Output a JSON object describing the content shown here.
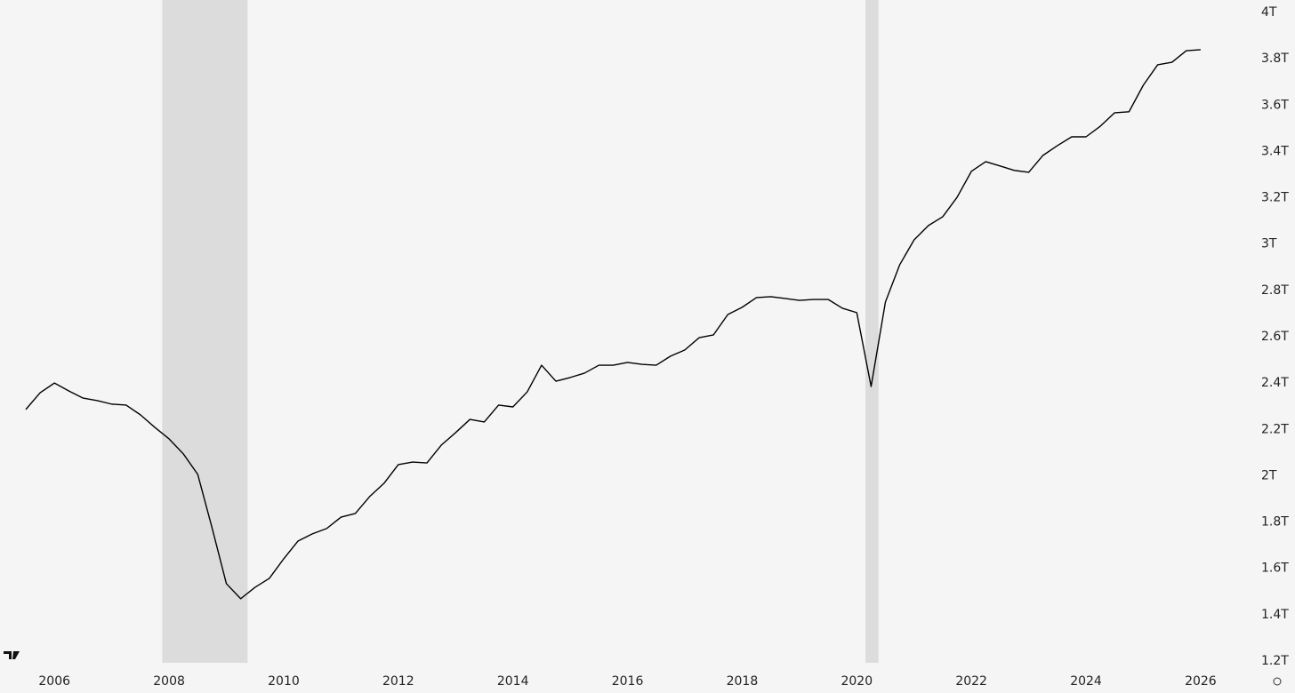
{
  "chart_data": {
    "type": "line",
    "color": "#000000",
    "x": [
      2005.5,
      2005.75,
      2006,
      2006.25,
      2006.5,
      2006.75,
      2007,
      2007.25,
      2007.5,
      2007.75,
      2008,
      2008.25,
      2008.5,
      2008.75,
      2009,
      2009.25,
      2009.5,
      2009.75,
      2010,
      2010.25,
      2010.5,
      2010.75,
      2011,
      2011.25,
      2011.5,
      2011.75,
      2012,
      2012.25,
      2012.5,
      2012.75,
      2013,
      2013.25,
      2013.5,
      2013.75,
      2014,
      2014.25,
      2014.5,
      2014.75,
      2015,
      2015.25,
      2015.5,
      2015.75,
      2016,
      2016.25,
      2016.5,
      2016.75,
      2017,
      2017.25,
      2017.5,
      2017.75,
      2018,
      2018.25,
      2018.5,
      2018.75,
      2019,
      2019.25,
      2019.5,
      2019.75,
      2020,
      2020.25,
      2020.5,
      2020.75,
      2021,
      2021.25,
      2021.5,
      2021.75,
      2022,
      2022.25,
      2022.5,
      2022.75,
      2023,
      2023.25,
      2023.5,
      2023.75,
      2024,
      2024.25,
      2024.5,
      2024.75,
      2025,
      2025.25,
      2025.5,
      2025.75,
      2026
    ],
    "values": [
      2.286,
      2.358,
      2.4,
      2.366,
      2.335,
      2.324,
      2.309,
      2.305,
      2.263,
      2.209,
      2.159,
      2.094,
      2.006,
      1.775,
      1.534,
      1.469,
      1.518,
      1.557,
      1.641,
      1.718,
      1.749,
      1.772,
      1.821,
      1.837,
      1.91,
      1.967,
      2.048,
      2.059,
      2.055,
      2.132,
      2.186,
      2.243,
      2.232,
      2.305,
      2.297,
      2.362,
      2.477,
      2.408,
      2.424,
      2.443,
      2.477,
      2.477,
      2.489,
      2.481,
      2.477,
      2.516,
      2.543,
      2.596,
      2.608,
      2.696,
      2.727,
      2.769,
      2.773,
      2.765,
      2.757,
      2.761,
      2.761,
      2.723,
      2.704,
      2.385,
      2.75,
      2.911,
      3.018,
      3.08,
      3.118,
      3.202,
      3.314,
      3.356,
      3.337,
      3.318,
      3.31,
      3.383,
      3.425,
      3.463,
      3.463,
      3.509,
      3.567,
      3.571,
      3.686,
      3.774,
      3.785,
      3.835,
      3.839
    ],
    "recessions": [
      [
        2007.88,
        2009.37
      ],
      [
        2020.15,
        2020.38
      ]
    ],
    "recession_color": "#dcdcdc",
    "xlim": [
      2005.05,
      2026.7
    ],
    "xticks": [
      2006,
      2008,
      2010,
      2012,
      2014,
      2016,
      2018,
      2020,
      2022,
      2024,
      2026
    ],
    "ylim": [
      1.2,
      4
    ],
    "yticks": [
      {
        "value": 1.2,
        "label": "1.2T"
      },
      {
        "value": 1.4,
        "label": "1.4T"
      },
      {
        "value": 1.6,
        "label": "1.6T"
      },
      {
        "value": 1.8,
        "label": "1.8T"
      },
      {
        "value": 2,
        "label": "2T"
      },
      {
        "value": 2.2,
        "label": "2.2T"
      },
      {
        "value": 2.4,
        "label": "2.4T"
      },
      {
        "value": 2.6,
        "label": "2.6T"
      },
      {
        "value": 2.8,
        "label": "2.8T"
      },
      {
        "value": 3,
        "label": "3T"
      },
      {
        "value": 3.2,
        "label": "3.2T"
      },
      {
        "value": 3.4,
        "label": "3.4T"
      },
      {
        "value": 3.6,
        "label": "3.6T"
      },
      {
        "value": 3.8,
        "label": "3.8T"
      },
      {
        "value": 4,
        "label": "4T"
      }
    ]
  }
}
